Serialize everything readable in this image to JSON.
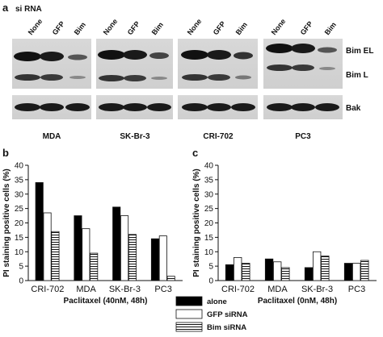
{
  "panel_a": {
    "label": "a",
    "title": "si RNA",
    "lanes": [
      "None",
      "GFP",
      "Bim"
    ],
    "groups": [
      "MDA",
      "SK-Br-3",
      "CRI-702",
      "PC3"
    ],
    "band_labels": [
      "Bim EL",
      "Bim L",
      "Bak"
    ]
  },
  "chart_data": [
    {
      "type": "bar",
      "panel": "b",
      "title": "",
      "categories": [
        "CRI-702",
        "MDA",
        "SK-Br-3",
        "PC3"
      ],
      "series": [
        {
          "name": "alone",
          "values": [
            34,
            22.5,
            25.5,
            14.5
          ]
        },
        {
          "name": "GFP siRNA",
          "values": [
            23.5,
            18,
            22.5,
            15.5
          ]
        },
        {
          "name": "Bim siRNA",
          "values": [
            17,
            9.5,
            16,
            1.5
          ]
        }
      ],
      "xlabel": "Paclitaxel (40nM, 48h)",
      "ylabel": "PI staining positive cells (%)",
      "ylim": [
        0,
        40
      ],
      "yticks": [
        0,
        5,
        10,
        15,
        20,
        25,
        30,
        35,
        40
      ],
      "grid": false
    },
    {
      "type": "bar",
      "panel": "c",
      "title": "",
      "categories": [
        "CRI-702",
        "MDA",
        "SK-Br-3",
        "PC3"
      ],
      "series": [
        {
          "name": "alone",
          "values": [
            5.5,
            7.5,
            4.5,
            6
          ]
        },
        {
          "name": "GFP siRNA",
          "values": [
            8,
            6.5,
            10,
            6
          ]
        },
        {
          "name": "Bim siRNA",
          "values": [
            6,
            4.5,
            8.5,
            7
          ]
        }
      ],
      "xlabel": "Paclitaxel (0nM, 48h)",
      "ylabel": "PI staining positive cells (%)",
      "ylim": [
        0,
        40
      ],
      "yticks": [
        0,
        5,
        10,
        15,
        20,
        25,
        30,
        35,
        40
      ],
      "grid": false
    }
  ],
  "legend": {
    "placement": "bottom-center",
    "items": [
      {
        "label": "alone",
        "style": "solid"
      },
      {
        "label": "GFP siRNA",
        "style": "open"
      },
      {
        "label": "Bim siRNA",
        "style": "striped"
      }
    ]
  },
  "colors": {
    "solid": "#000000",
    "open": "#ffffff",
    "stroke": "#111111"
  }
}
